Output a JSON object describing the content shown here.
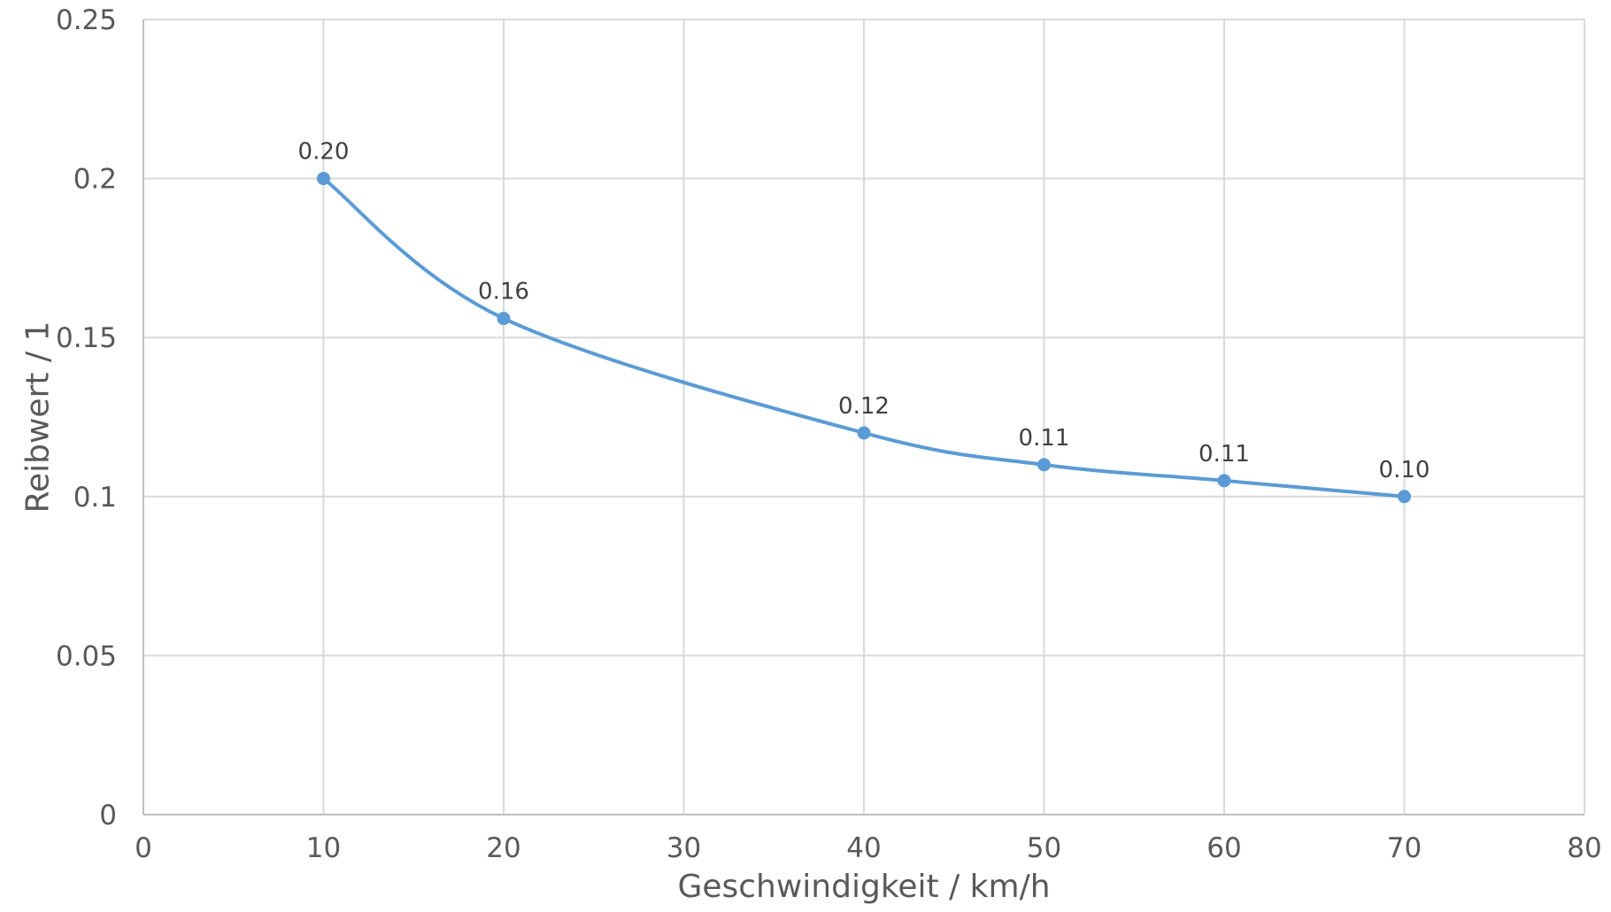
{
  "chart_data": {
    "type": "scatter",
    "xlabel": "Geschwindigkeit / km/h",
    "ylabel": "Reibwert / 1",
    "xlim": [
      0,
      80
    ],
    "ylim": [
      0,
      0.25
    ],
    "x_ticks": [
      "0",
      "10",
      "20",
      "30",
      "40",
      "50",
      "60",
      "70",
      "80"
    ],
    "y_ticks": [
      "0",
      "0.05",
      "0.1",
      "0.15",
      "0.2",
      "0.25"
    ],
    "grid": true,
    "legend": "none",
    "line": "smoothed",
    "color": "#5b9bd5",
    "series": [
      {
        "x": [
          10,
          20,
          40,
          50,
          60,
          70
        ],
        "y": [
          0.2,
          0.156,
          0.12,
          0.11,
          0.105,
          0.1
        ],
        "labels": [
          "0.20",
          "0.16",
          "0.12",
          "0.11",
          "0.11",
          "0.10"
        ]
      }
    ]
  }
}
